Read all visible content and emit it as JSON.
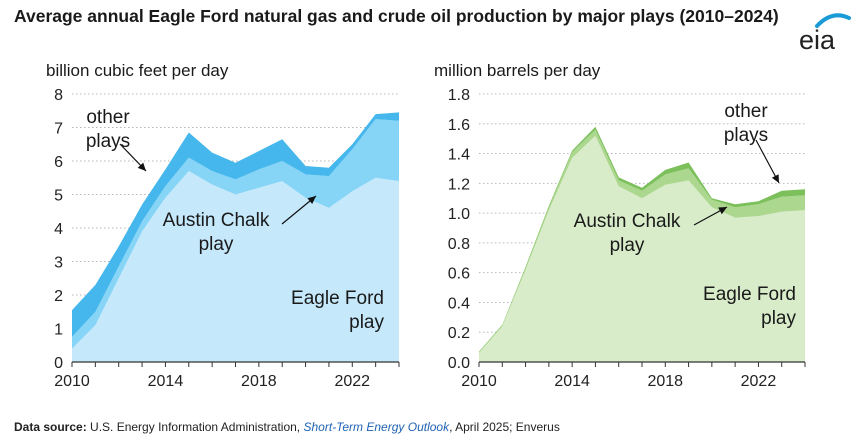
{
  "title": "Average annual Eagle Ford natural gas and crude oil production by major plays (2010–2024)",
  "logo_text": "eia",
  "colors": {
    "gas_eagle_ford": "#c5e8fb",
    "gas_austin_chalk": "#86d4f6",
    "gas_other": "#45b7ec",
    "oil_eagle_ford": "#d8ecc9",
    "oil_austin_chalk": "#acd78e",
    "oil_other": "#7cc05c",
    "axis": "#333333",
    "grid": "#b7b7b7",
    "logo_arc": "#1a9ad6"
  },
  "footer": {
    "label": "Data source:",
    "text1": " U.S. Energy Information Administration, ",
    "link": "Short-Term Energy Outlook",
    "text2": ", April 2025; Enverus"
  },
  "chart_data": [
    {
      "type": "area",
      "stacked": true,
      "ylabel": "billion cubic feet per day",
      "ylim": [
        0,
        8
      ],
      "yticks": [
        "0",
        "1",
        "2",
        "3",
        "4",
        "5",
        "6",
        "7",
        "8"
      ],
      "xlim": [
        2010,
        2024
      ],
      "xticks": [
        "2010",
        "2014",
        "2018",
        "2022"
      ],
      "grid": "horizontal dotted",
      "x": [
        2010,
        2011,
        2012,
        2013,
        2014,
        2015,
        2016,
        2017,
        2018,
        2019,
        2020,
        2021,
        2022,
        2023,
        2024
      ],
      "series": [
        {
          "name": "Eagle Ford play",
          "values": [
            0.4,
            1.1,
            2.5,
            3.9,
            4.9,
            5.7,
            5.3,
            5.0,
            5.2,
            5.4,
            4.9,
            4.6,
            5.1,
            5.5,
            5.4
          ]
        },
        {
          "name": "Austin Chalk play",
          "values": [
            0.35,
            0.4,
            0.35,
            0.3,
            0.35,
            0.4,
            0.4,
            0.45,
            0.55,
            0.6,
            0.7,
            0.95,
            1.25,
            1.75,
            1.8
          ]
        },
        {
          "name": "other plays",
          "values": [
            0.8,
            0.8,
            0.6,
            0.5,
            0.5,
            0.75,
            0.55,
            0.5,
            0.55,
            0.65,
            0.25,
            0.25,
            0.15,
            0.15,
            0.25
          ]
        }
      ],
      "annotations": [
        {
          "text": [
            "other",
            "plays"
          ]
        },
        {
          "text": [
            "Austin Chalk",
            "play"
          ]
        },
        {
          "text": [
            "Eagle Ford",
            "play"
          ]
        }
      ]
    },
    {
      "type": "area",
      "stacked": true,
      "ylabel": "million barrels per day",
      "ylim": [
        0,
        1.8
      ],
      "yticks": [
        "0.0",
        "0.2",
        "0.4",
        "0.6",
        "0.8",
        "1.0",
        "1.2",
        "1.4",
        "1.6",
        "1.8"
      ],
      "xlim": [
        2010,
        2024
      ],
      "xticks": [
        "2010",
        "2014",
        "2018",
        "2022"
      ],
      "grid": "horizontal dotted",
      "x": [
        2010,
        2011,
        2012,
        2013,
        2014,
        2015,
        2016,
        2017,
        2018,
        2019,
        2020,
        2021,
        2022,
        2023,
        2024
      ],
      "series": [
        {
          "name": "Eagle Ford play",
          "values": [
            0.06,
            0.24,
            0.62,
            1.02,
            1.37,
            1.52,
            1.18,
            1.1,
            1.19,
            1.22,
            1.04,
            0.97,
            0.98,
            1.01,
            1.02
          ]
        },
        {
          "name": "Austin Chalk play",
          "values": [
            0.005,
            0.005,
            0.01,
            0.02,
            0.04,
            0.04,
            0.04,
            0.05,
            0.07,
            0.08,
            0.05,
            0.07,
            0.08,
            0.1,
            0.1
          ]
        },
        {
          "name": "other plays",
          "values": [
            0.005,
            0.005,
            0.01,
            0.01,
            0.01,
            0.02,
            0.02,
            0.02,
            0.03,
            0.04,
            0.01,
            0.02,
            0.02,
            0.04,
            0.04
          ]
        }
      ],
      "annotations": [
        {
          "text": [
            "other",
            "plays"
          ]
        },
        {
          "text": [
            "Austin Chalk",
            "play"
          ]
        },
        {
          "text": [
            "Eagle Ford",
            "play"
          ]
        }
      ]
    }
  ]
}
